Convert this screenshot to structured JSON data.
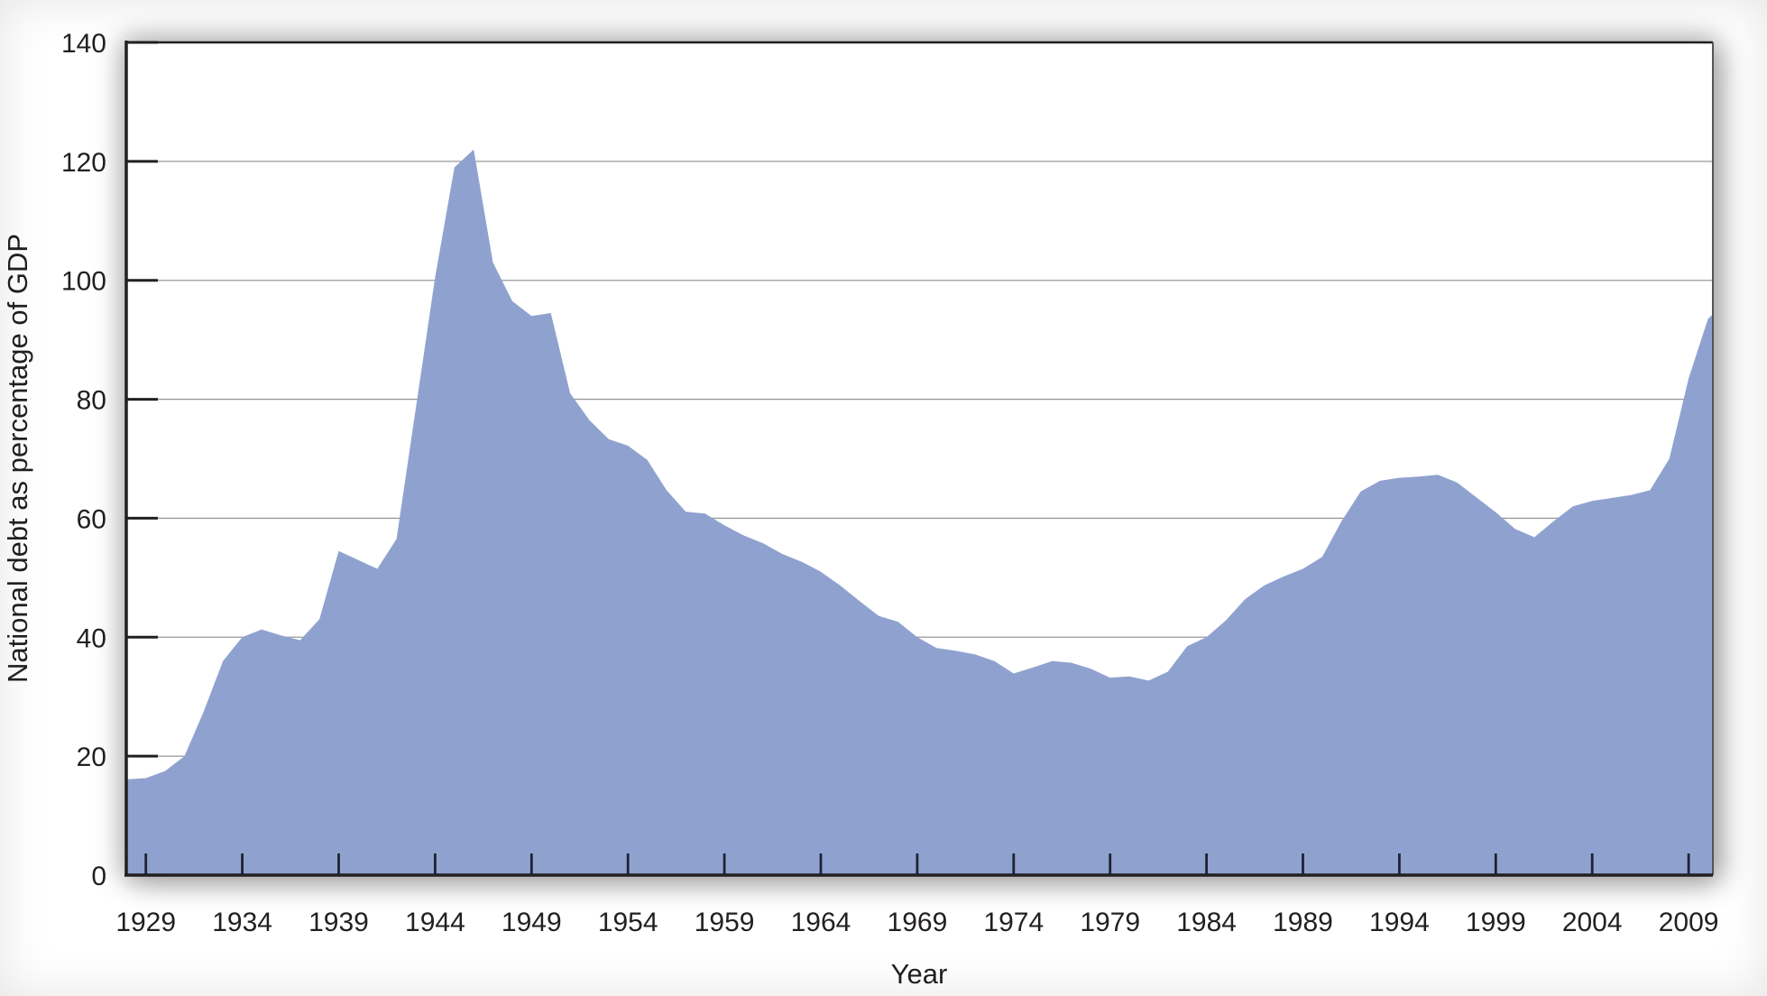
{
  "chart_data": {
    "type": "area",
    "title": "",
    "xlabel": "Year",
    "ylabel": "National debt as percentage of GDP",
    "legend": "none",
    "grid": "horizontal gridlines at y multiples of 20, drawn behind area fill",
    "area_color": "#8fa2cf",
    "axis_color": "#231f20",
    "gridline_color": "#999999",
    "background_color": "#ffffff",
    "ylim": [
      0,
      140
    ],
    "xlim": [
      1928.0,
      2010.6
    ],
    "y_ticks": [
      0,
      20,
      40,
      60,
      80,
      100,
      120,
      140
    ],
    "x_ticks": [
      1929,
      1934,
      1939,
      1944,
      1949,
      1954,
      1959,
      1964,
      1969,
      1974,
      1979,
      1984,
      1989,
      1994,
      1999,
      2004,
      2009
    ],
    "left_edge_value": 16.1,
    "right_edge_value": 94.3,
    "series": [
      {
        "name": "National debt as percentage of GDP",
        "x": [
          1929,
          1930,
          1931,
          1932,
          1933,
          1934,
          1935,
          1936,
          1937,
          1938,
          1939,
          1940,
          1941,
          1942,
          1943,
          1944,
          1945,
          1946,
          1947,
          1948,
          1949,
          1950,
          1951,
          1952,
          1953,
          1954,
          1955,
          1956,
          1957,
          1958,
          1959,
          1960,
          1961,
          1962,
          1963,
          1964,
          1965,
          1966,
          1967,
          1968,
          1969,
          1970,
          1971,
          1972,
          1973,
          1974,
          1975,
          1976,
          1977,
          1978,
          1979,
          1980,
          1981,
          1982,
          1983,
          1984,
          1985,
          1986,
          1987,
          1988,
          1989,
          1990,
          1991,
          1992,
          1993,
          1994,
          1995,
          1996,
          1997,
          1998,
          1999,
          2000,
          2001,
          2002,
          2003,
          2004,
          2005,
          2006,
          2007,
          2008,
          2009,
          2010
        ],
        "values": [
          16.3,
          17.5,
          20.0,
          27.5,
          36.0,
          40.0,
          41.3,
          40.3,
          39.5,
          43.0,
          54.5,
          53.0,
          51.5,
          56.5,
          78.5,
          100.5,
          119.0,
          122.0,
          103.0,
          96.5,
          94.0,
          94.5,
          81.0,
          76.5,
          73.3,
          72.2,
          69.8,
          64.7,
          61.1,
          60.8,
          58.8,
          57.1,
          55.8,
          54.0,
          52.7,
          51.0,
          48.7,
          46.1,
          43.6,
          42.6,
          40.0,
          38.2,
          37.7,
          37.1,
          36.0,
          33.9,
          34.9,
          36.0,
          35.7,
          34.7,
          33.2,
          33.4,
          32.7,
          34.2,
          38.5,
          40.0,
          42.8,
          46.4,
          48.7,
          50.2,
          51.5,
          53.5,
          59.5,
          64.5,
          66.3,
          66.8,
          67.0,
          67.3,
          66.0,
          63.5,
          61.0,
          58.2,
          56.8,
          59.5,
          62.0,
          62.9,
          63.4,
          63.9,
          64.7,
          70.0,
          83.5,
          93.5
        ]
      }
    ]
  }
}
